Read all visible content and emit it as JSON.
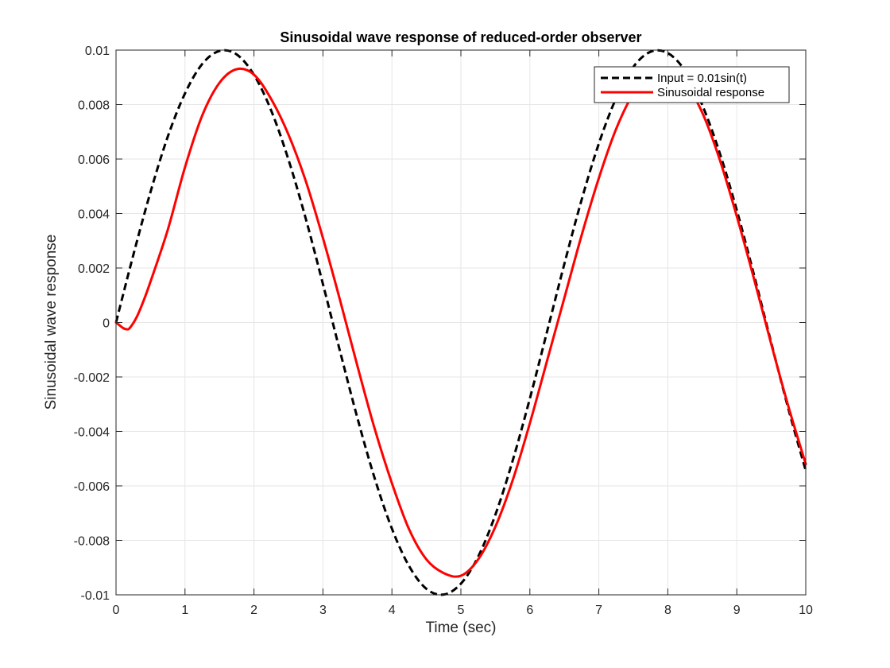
{
  "chart_data": {
    "type": "line",
    "title": "Sinusoidal wave response of reduced-order observer",
    "xlabel": "Time (sec)",
    "ylabel": "Sinusoidal wave response",
    "xlim": [
      0,
      10
    ],
    "ylim": [
      -0.01,
      0.01
    ],
    "x_ticks": [
      0,
      1,
      2,
      3,
      4,
      5,
      6,
      7,
      8,
      9,
      10
    ],
    "x_tick_labels": [
      "0",
      "1",
      "2",
      "3",
      "4",
      "5",
      "6",
      "7",
      "8",
      "9",
      "10"
    ],
    "y_ticks": [
      -0.01,
      -0.008,
      -0.006,
      -0.004,
      -0.002,
      0,
      0.002,
      0.004,
      0.006,
      0.008,
      0.01
    ],
    "y_tick_labels": [
      "-0.01",
      "-0.008",
      "-0.006",
      "-0.004",
      "-0.002",
      "0",
      "0.002",
      "0.004",
      "0.006",
      "0.008",
      "0.01"
    ],
    "grid": true,
    "legend_position": "top-right",
    "series": [
      {
        "name": "Input = 0.01sin(t)",
        "color": "#000000",
        "style": "dashed",
        "x": [
          0,
          0.25,
          0.5,
          0.75,
          1,
          1.25,
          1.5,
          1.75,
          2,
          2.25,
          2.5,
          2.75,
          3,
          3.25,
          3.5,
          3.75,
          4,
          4.25,
          4.5,
          4.75,
          5,
          5.25,
          5.5,
          5.75,
          6,
          6.25,
          6.5,
          6.75,
          7,
          7.25,
          7.5,
          7.75,
          8,
          8.25,
          8.5,
          8.75,
          9,
          9.25,
          9.5,
          9.75,
          10
        ],
        "y": [
          0,
          0.00247,
          0.00479,
          0.00682,
          0.00841,
          0.00949,
          0.00997,
          0.00984,
          0.00909,
          0.00778,
          0.00598,
          0.00382,
          0.00141,
          -0.00108,
          -0.00351,
          -0.00572,
          -0.00757,
          -0.00895,
          -0.00978,
          -0.00999,
          -0.00959,
          -0.0086,
          -0.00706,
          -0.00508,
          -0.00279,
          -0.00033,
          0.00215,
          0.0045,
          0.00657,
          0.00823,
          0.00938,
          0.00994,
          0.00989,
          0.00924,
          0.00798,
          0.00624,
          0.00412,
          0.00174,
          -0.00075,
          -0.00319,
          -0.00544
        ]
      },
      {
        "name": "Sinusoidal response",
        "color": "#ff0000",
        "style": "solid",
        "x": [
          0,
          0.05,
          0.1,
          0.15,
          0.2,
          0.3,
          0.4,
          0.5,
          0.75,
          1,
          1.25,
          1.5,
          1.75,
          2,
          2.25,
          2.5,
          2.75,
          3,
          3.25,
          3.5,
          3.75,
          4,
          4.25,
          4.5,
          4.75,
          5,
          5.25,
          5.5,
          5.75,
          6,
          6.25,
          6.5,
          6.75,
          7,
          7.25,
          7.5,
          7.75,
          8,
          8.25,
          8.5,
          8.75,
          9,
          9.25,
          9.5,
          9.75,
          10
        ],
        "y": [
          0,
          -0.0001,
          -0.0002,
          -0.00025,
          -0.0002,
          0.0002,
          0.0008,
          0.0015,
          0.0034,
          0.0057,
          0.0076,
          0.0088,
          0.0093,
          0.0091,
          0.0082,
          0.0069,
          0.0052,
          0.0031,
          0.0008,
          -0.0016,
          -0.0039,
          -0.0059,
          -0.0076,
          -0.0087,
          -0.0092,
          -0.0093,
          -0.0087,
          -0.0075,
          -0.0058,
          -0.0037,
          -0.0014,
          0.0009,
          0.0032,
          0.0053,
          0.0071,
          0.0084,
          0.0091,
          0.0093,
          0.0088,
          0.0077,
          0.006,
          0.0039,
          0.0016,
          -0.0008,
          -0.0031,
          -0.0052
        ]
      }
    ]
  }
}
